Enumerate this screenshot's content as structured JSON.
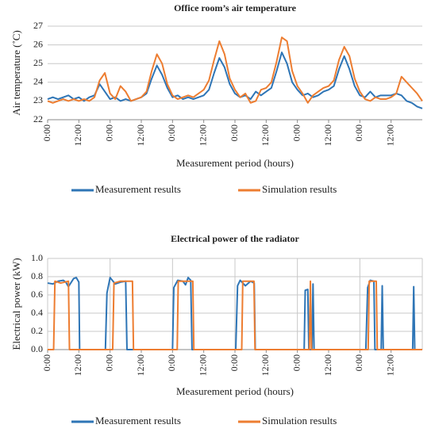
{
  "chart_data": [
    {
      "type": "line",
      "title": "Office room’s air temperature",
      "xlabel": "Measurement period (hours)",
      "ylabel": "Air temperature (˚C)",
      "x": [
        0,
        2,
        4,
        6,
        8,
        10,
        12,
        14,
        16,
        18,
        20,
        22,
        24,
        26,
        28,
        30,
        32,
        34,
        36,
        38,
        40,
        42,
        44,
        46,
        48,
        50,
        52,
        54,
        56,
        58,
        60,
        62,
        64,
        66,
        68,
        70,
        72,
        74,
        76,
        78,
        80,
        82,
        84,
        86,
        88,
        90,
        92,
        94,
        96,
        98,
        100,
        102,
        104,
        106,
        108,
        110,
        112,
        114,
        116,
        118,
        120,
        122,
        124,
        126,
        128,
        130,
        132,
        134,
        136,
        138,
        140,
        142,
        144
      ],
      "series": [
        {
          "name": "Measurement results",
          "color": "#2e75b6",
          "values": [
            23.1,
            23.2,
            23.1,
            23.2,
            23.3,
            23.1,
            23.2,
            23.0,
            23.2,
            23.3,
            23.9,
            23.5,
            23.1,
            23.2,
            23.0,
            23.1,
            23.0,
            23.1,
            23.2,
            23.4,
            24.2,
            24.9,
            24.4,
            23.7,
            23.2,
            23.3,
            23.1,
            23.2,
            23.1,
            23.2,
            23.3,
            23.6,
            24.5,
            25.3,
            24.8,
            23.9,
            23.4,
            23.2,
            23.3,
            23.1,
            23.5,
            23.3,
            23.5,
            23.7,
            24.6,
            25.6,
            25.0,
            24.0,
            23.6,
            23.3,
            23.4,
            23.2,
            23.3,
            23.5,
            23.6,
            23.8,
            24.7,
            25.4,
            24.7,
            23.8,
            23.3,
            23.2,
            23.5,
            23.2,
            23.3,
            23.3,
            23.3,
            23.4,
            23.3,
            23.0,
            22.9,
            22.7,
            22.6
          ]
        },
        {
          "name": "Simulation results",
          "color": "#ed7d31",
          "values": [
            23.0,
            22.9,
            23.0,
            23.1,
            23.0,
            23.1,
            23.0,
            23.1,
            23.0,
            23.2,
            24.1,
            24.5,
            23.4,
            23.1,
            23.8,
            23.5,
            23.0,
            23.1,
            23.2,
            23.5,
            24.6,
            25.5,
            25.0,
            23.9,
            23.3,
            23.1,
            23.2,
            23.3,
            23.2,
            23.4,
            23.6,
            24.1,
            25.2,
            26.2,
            25.5,
            24.2,
            23.6,
            23.2,
            23.4,
            22.9,
            23.0,
            23.6,
            23.7,
            24.0,
            25.1,
            26.4,
            26.2,
            24.6,
            23.8,
            23.4,
            22.9,
            23.3,
            23.5,
            23.7,
            23.8,
            24.1,
            25.2,
            25.9,
            25.4,
            24.2,
            23.5,
            23.1,
            23.0,
            23.2,
            23.1,
            23.1,
            23.2,
            23.4,
            24.3,
            24.0,
            23.7,
            23.4,
            23.0
          ]
        }
      ],
      "xlim": [
        0,
        144
      ],
      "xticks": [
        {
          "value": 0,
          "label": "0:00"
        },
        {
          "value": 12,
          "label": "12:00"
        },
        {
          "value": 24,
          "label": "0:00"
        },
        {
          "value": 36,
          "label": "12:00"
        },
        {
          "value": 48,
          "label": "0:00"
        },
        {
          "value": 60,
          "label": "12:00"
        },
        {
          "value": 72,
          "label": "0:00"
        },
        {
          "value": 84,
          "label": "12:00"
        },
        {
          "value": 96,
          "label": "0:00"
        },
        {
          "value": 108,
          "label": "12:00"
        },
        {
          "value": 120,
          "label": "0:00"
        },
        {
          "value": 132,
          "label": "12:00"
        }
      ],
      "ylim": [
        22,
        27
      ],
      "yticks": [
        22,
        23,
        24,
        25,
        26,
        27
      ],
      "grid": true
    },
    {
      "type": "line",
      "title": "Electrical power of the radiator",
      "xlabel": "Measurement period (hours)",
      "ylabel": "Electrical power (kW)",
      "series": [
        {
          "name": "Measurement results",
          "color": "#2e75b6",
          "x": [
            0,
            2,
            4,
            6,
            7,
            8,
            10,
            11,
            12,
            12.3,
            22.2,
            22.8,
            24,
            26,
            28,
            30,
            30.5,
            48,
            48.5,
            50,
            52,
            53,
            54,
            55,
            55.5,
            72.3,
            73,
            74,
            76,
            78,
            79.4,
            79.8,
            98.6,
            99,
            100,
            100.4,
            101.6,
            102,
            102.4,
            122.3,
            123,
            124,
            125.4,
            125.8,
            128.2,
            128.6,
            129,
            140.3,
            140.7,
            141.1,
            144
          ],
          "values": [
            0.73,
            0.72,
            0.75,
            0.76,
            0.74,
            0.69,
            0.78,
            0.79,
            0.74,
            0,
            0,
            0.62,
            0.79,
            0.72,
            0.74,
            0.75,
            0,
            0,
            0.68,
            0.76,
            0.75,
            0.71,
            0.79,
            0.76,
            0,
            0,
            0.7,
            0.76,
            0.7,
            0.75,
            0.73,
            0,
            0,
            0.65,
            0.66,
            0,
            0,
            0.72,
            0,
            0,
            0.68,
            0.76,
            0.75,
            0,
            0,
            0.7,
            0,
            0,
            0.69,
            0,
            0
          ]
        },
        {
          "name": "Simulation results",
          "color": "#ed7d31",
          "x": [
            0,
            2.3,
            2.8,
            5,
            8,
            8.4,
            25,
            25.5,
            28,
            32.6,
            33,
            49.8,
            50.2,
            55.8,
            56.2,
            74.6,
            75,
            79.3,
            79.7,
            100.6,
            101,
            101.4,
            123.2,
            123.6,
            126.3,
            126.7,
            144
          ],
          "values": [
            0,
            0,
            0.75,
            0.73,
            0.75,
            0,
            0,
            0.73,
            0.75,
            0.75,
            0,
            0,
            0.75,
            0.75,
            0,
            0,
            0.75,
            0.75,
            0,
            0,
            0.75,
            0,
            0,
            0.75,
            0.75,
            0,
            0
          ]
        }
      ],
      "xlim": [
        0,
        144
      ],
      "xticks": [
        {
          "value": 0,
          "label": "0:00"
        },
        {
          "value": 12,
          "label": "12:00"
        },
        {
          "value": 24,
          "label": "0:00"
        },
        {
          "value": 36,
          "label": "12:00"
        },
        {
          "value": 48,
          "label": "0:00"
        },
        {
          "value": 60,
          "label": "12:00"
        },
        {
          "value": 72,
          "label": "0:00"
        },
        {
          "value": 84,
          "label": "12:00"
        },
        {
          "value": 96,
          "label": "0:00"
        },
        {
          "value": 108,
          "label": "12:00"
        },
        {
          "value": 120,
          "label": "0:00"
        },
        {
          "value": 132,
          "label": "12:00"
        }
      ],
      "xgrid": [
        0,
        24,
        48,
        72,
        96,
        120,
        144
      ],
      "ylim": [
        0,
        1
      ],
      "yticks": [
        {
          "value": 0,
          "label": "0.0"
        },
        {
          "value": 0.2,
          "label": "0.2"
        },
        {
          "value": 0.4,
          "label": "0.4"
        },
        {
          "value": 0.6,
          "label": "0.6"
        },
        {
          "value": 0.8,
          "label": "0.8"
        },
        {
          "value": 1,
          "label": "1.0"
        }
      ],
      "grid": true
    }
  ]
}
